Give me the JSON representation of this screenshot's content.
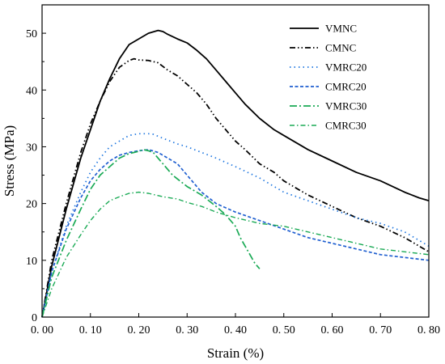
{
  "chart_data": {
    "type": "line",
    "xlabel": "Strain (%)",
    "ylabel": "Stress (MPa)",
    "xlim": [
      0,
      0.8
    ],
    "ylim": [
      0,
      55
    ],
    "xticks": [
      0,
      0.1,
      0.2,
      0.3,
      0.4,
      0.5,
      0.6,
      0.7,
      0.8
    ],
    "xtick_labels": [
      "0. 00",
      "0. 10",
      "0. 20",
      "0. 30",
      "0. 40",
      "0. 50",
      "0. 60",
      "0. 70",
      "0. 80"
    ],
    "yticks": [
      0,
      10,
      20,
      30,
      40,
      50
    ],
    "ytick_labels": [
      "0",
      "10",
      "20",
      "30",
      "40",
      "50"
    ],
    "grid": false,
    "legend_position": "top-right",
    "series": [
      {
        "name": "VMNC",
        "color": "#000000",
        "style": "solid",
        "x": [
          0,
          0.02,
          0.05,
          0.08,
          0.1,
          0.12,
          0.14,
          0.16,
          0.18,
          0.2,
          0.22,
          0.24,
          0.25,
          0.26,
          0.28,
          0.3,
          0.32,
          0.34,
          0.36,
          0.38,
          0.4,
          0.42,
          0.45,
          0.48,
          0.5,
          0.55,
          0.6,
          0.65,
          0.7,
          0.75,
          0.78,
          0.8
        ],
        "y": [
          0,
          9,
          19,
          28,
          33,
          38,
          42,
          45.5,
          48,
          49,
          50,
          50.5,
          50.3,
          49.8,
          49,
          48.3,
          47,
          45.5,
          43.5,
          41.5,
          39.5,
          37.5,
          35,
          33,
          32,
          29.5,
          27.5,
          25.5,
          24,
          22,
          21,
          20.5
        ]
      },
      {
        "name": "CMNC",
        "color": "#000000",
        "style": "dashdotdot",
        "x": [
          0,
          0.02,
          0.05,
          0.08,
          0.1,
          0.12,
          0.14,
          0.16,
          0.18,
          0.19,
          0.2,
          0.22,
          0.24,
          0.26,
          0.28,
          0.3,
          0.32,
          0.34,
          0.36,
          0.38,
          0.4,
          0.42,
          0.45,
          0.48,
          0.5,
          0.55,
          0.6,
          0.65,
          0.7,
          0.75,
          0.78,
          0.8
        ],
        "y": [
          0,
          10,
          20,
          29,
          34,
          38,
          41.5,
          44,
          45.2,
          45.5,
          45.3,
          45.2,
          44.8,
          43.5,
          42.5,
          41,
          39.5,
          37.5,
          35,
          33,
          31,
          29.5,
          27,
          25.5,
          24,
          21.5,
          19.5,
          17.5,
          16,
          14,
          12.5,
          11.5
        ]
      },
      {
        "name": "VMRC20",
        "color": "#1f77e0",
        "style": "dotted",
        "x": [
          0,
          0.02,
          0.05,
          0.08,
          0.1,
          0.12,
          0.14,
          0.16,
          0.18,
          0.2,
          0.22,
          0.23,
          0.25,
          0.28,
          0.3,
          0.33,
          0.36,
          0.4,
          0.45,
          0.5,
          0.55,
          0.6,
          0.65,
          0.7,
          0.75,
          0.8
        ],
        "y": [
          0,
          8,
          16,
          22,
          25.5,
          28,
          30,
          31,
          32,
          32.3,
          32.3,
          32.2,
          31.5,
          30.5,
          30,
          29,
          28,
          26.5,
          24.5,
          22,
          20.5,
          19,
          17.5,
          16.5,
          15,
          12.5
        ]
      },
      {
        "name": "CMRC20",
        "color": "#1f5fd0",
        "style": "dashed",
        "x": [
          0,
          0.02,
          0.05,
          0.08,
          0.1,
          0.12,
          0.14,
          0.16,
          0.18,
          0.2,
          0.22,
          0.24,
          0.26,
          0.28,
          0.3,
          0.33,
          0.36,
          0.4,
          0.45,
          0.5,
          0.55,
          0.6,
          0.65,
          0.7,
          0.75,
          0.8
        ],
        "y": [
          0,
          8,
          15.5,
          21,
          24,
          26,
          27.5,
          28.5,
          29,
          29.3,
          29.5,
          29,
          28,
          27,
          25,
          22,
          20,
          18.5,
          17,
          15.5,
          14,
          13,
          12,
          11,
          10.5,
          10
        ]
      },
      {
        "name": "VMRC30",
        "color": "#1aaa55",
        "style": "dashdot",
        "x": [
          0,
          0.02,
          0.05,
          0.08,
          0.1,
          0.12,
          0.14,
          0.16,
          0.18,
          0.2,
          0.21,
          0.22,
          0.23,
          0.25,
          0.27,
          0.3,
          0.33,
          0.36,
          0.38,
          0.4,
          0.41,
          0.42,
          0.43,
          0.44,
          0.45
        ],
        "y": [
          0,
          7,
          13.5,
          19,
          22.5,
          25,
          26.5,
          28,
          28.8,
          29.2,
          29.5,
          29.3,
          29,
          27,
          25,
          23,
          21.5,
          19.5,
          18,
          16,
          14,
          12.5,
          11,
          9.5,
          8.5
        ]
      },
      {
        "name": "CMRC30",
        "color": "#1aaa55",
        "style": "dashdot-fine",
        "x": [
          0,
          0.02,
          0.05,
          0.08,
          0.1,
          0.12,
          0.14,
          0.16,
          0.18,
          0.2,
          0.22,
          0.25,
          0.28,
          0.3,
          0.33,
          0.36,
          0.4,
          0.45,
          0.5,
          0.55,
          0.6,
          0.65,
          0.7,
          0.75,
          0.8
        ],
        "y": [
          0,
          5,
          10.5,
          14.5,
          17,
          19,
          20.5,
          21.2,
          21.8,
          22,
          21.8,
          21.2,
          20.8,
          20.2,
          19.5,
          18.5,
          17.5,
          16.5,
          16,
          15,
          14,
          13,
          12,
          11.5,
          11
        ]
      }
    ]
  }
}
